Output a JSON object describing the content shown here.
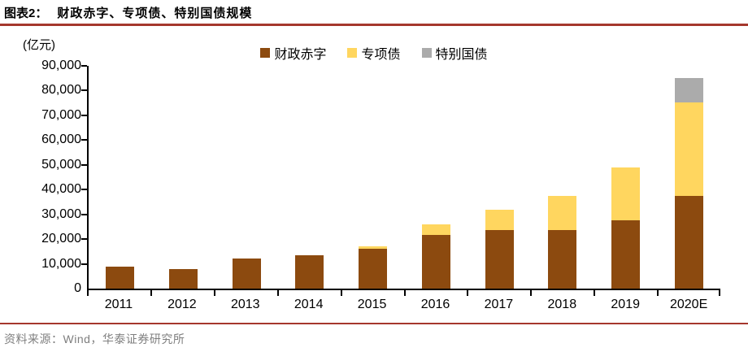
{
  "header": {
    "label": "图表2：",
    "title": "财政赤字、专项债、特别国债规模"
  },
  "footer": {
    "source": "资料来源：Wind，华泰证券研究所"
  },
  "colors": {
    "accent_rule": "#A5372D",
    "axis": "#000000",
    "source_text": "#7F7F7F",
    "deficit_brown": "#8C4A0F",
    "special_bond_yellow": "#FFD65F",
    "special_treasury_gray": "#ABABAB"
  },
  "chart_data": {
    "type": "bar",
    "stacked": true,
    "title": "财政赤字、专项债、特别国债规模",
    "unit_label": "(亿元)",
    "xlabel": "",
    "ylabel": "亿元",
    "categories": [
      "2011",
      "2012",
      "2013",
      "2014",
      "2015",
      "2016",
      "2017",
      "2018",
      "2019",
      "2020E"
    ],
    "series": [
      {
        "name": "财政赤字",
        "color": "#8C4A0F",
        "values": [
          9000,
          8000,
          12000,
          13500,
          16200,
          21800,
          23800,
          23800,
          27600,
          37600
        ]
      },
      {
        "name": "专项债",
        "color": "#FFD65F",
        "values": [
          0,
          0,
          0,
          0,
          1000,
          4000,
          8000,
          13500,
          21500,
          37500
        ]
      },
      {
        "name": "特别国债",
        "color": "#ABABAB",
        "values": [
          0,
          0,
          0,
          0,
          0,
          0,
          0,
          0,
          0,
          10000
        ]
      }
    ],
    "ylim": [
      0,
      90000
    ],
    "ytick_step": 10000,
    "ytick_labels": [
      "0",
      "10,000",
      "20,000",
      "30,000",
      "40,000",
      "50,000",
      "60,000",
      "70,000",
      "80,000",
      "90,000"
    ],
    "legend_position": "top-center",
    "grid": false
  }
}
